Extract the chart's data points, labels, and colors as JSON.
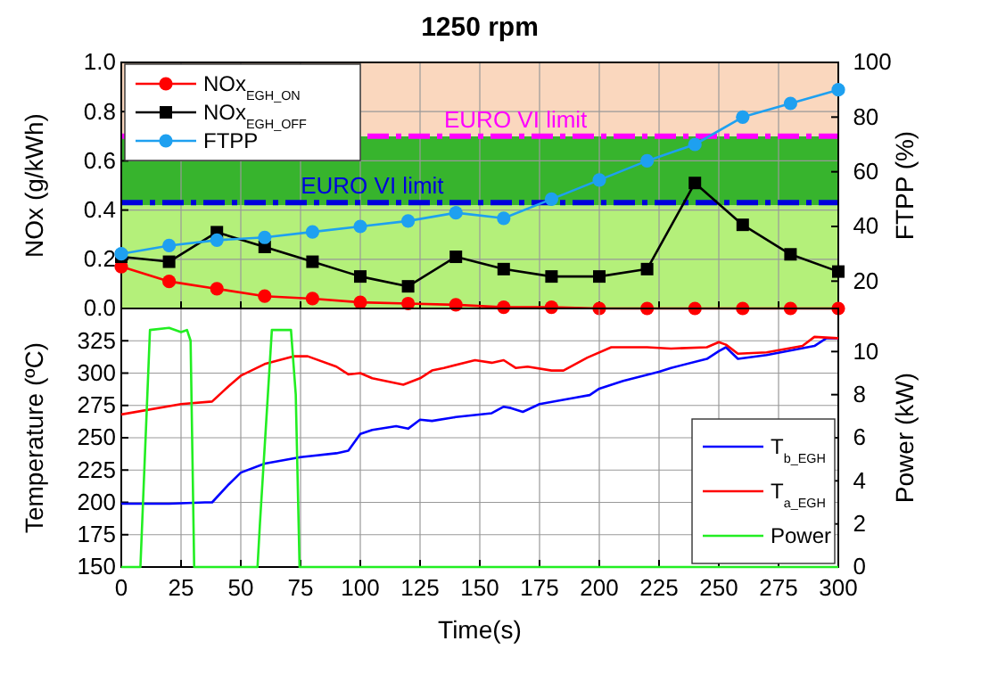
{
  "chart_data": [
    {
      "type": "line",
      "title": "1250 rpm",
      "ylabel": "NOx (g/kWh)",
      "y2label": "FTPP (%)",
      "x": [
        0,
        20,
        40,
        60,
        80,
        100,
        120,
        140,
        160,
        180,
        200,
        220,
        240,
        260,
        280,
        300
      ],
      "series": [
        {
          "name": "NOx$_{EGH_ON}$",
          "color": "#ff0000",
          "marker": "circle",
          "values": [
            0.17,
            0.11,
            0.08,
            0.05,
            0.04,
            0.025,
            0.02,
            0.015,
            0.005,
            0.005,
            0,
            0,
            0,
            0,
            0,
            0
          ]
        },
        {
          "name": "NOx$_{EGH_OFF}$",
          "color": "#000000",
          "marker": "square",
          "values": [
            0.21,
            0.19,
            0.31,
            0.25,
            0.19,
            0.13,
            0.09,
            0.21,
            0.16,
            0.13,
            0.13,
            0.16,
            0.51,
            0.34,
            0.22,
            0.15
          ]
        },
        {
          "name": "FTPP",
          "color": "#1ea0f0",
          "marker": "circle",
          "axis": "y2",
          "values": [
            30,
            33,
            35,
            36,
            38,
            40,
            42,
            45,
            43,
            50,
            57,
            64,
            70,
            80,
            85,
            90
          ]
        }
      ],
      "xlim": [
        0,
        300
      ],
      "xticks": [
        0,
        25,
        50,
        75,
        100,
        125,
        150,
        175,
        200,
        225,
        250,
        275,
        300
      ],
      "ylim": [
        0,
        1
      ],
      "yticks": [
        {
          "value": 0,
          "label": "0.0"
        },
        0.2,
        0.4,
        0.6,
        0.8,
        {
          "value": 1,
          "label": "1.0"
        }
      ],
      "y2lim": [
        10,
        100
      ],
      "y2ticks": [
        20,
        40,
        60,
        80,
        100
      ],
      "bands": [
        {
          "axis": "y",
          "from": 0,
          "to": 0.42,
          "color": "#b4f07a"
        },
        {
          "axis": "y",
          "from": 0.42,
          "to": 0.7,
          "color": "#37b42d"
        },
        {
          "axis": "y",
          "from": 0.7,
          "to": 1,
          "color": "#fad7be"
        }
      ],
      "ref_lines": [
        {
          "axis": "y",
          "value": 0.7,
          "label": "EURO VI limit",
          "color": "#ff00ff",
          "line_style": "dashed"
        },
        {
          "axis": "y",
          "value": 0.43,
          "label": "EURO VI limit",
          "color": "#0000dd",
          "line_style": "dashed"
        }
      ],
      "grid": true,
      "legend": "top left",
      "tick_labels": "y"
    },
    {
      "type": "line",
      "xlabel": "Time(s)",
      "ylabel": "Temperature (ºC)",
      "y2label": "Power (kW)",
      "series": [
        {
          "name": "T$_{b_EGH}$",
          "color": "#0000ff",
          "x": [
            0,
            20,
            35,
            38,
            45,
            50,
            60,
            75,
            90,
            95,
            100,
            105,
            115,
            120,
            125,
            130,
            140,
            155,
            160,
            163,
            168,
            175,
            190,
            196,
            200,
            210,
            225,
            230,
            245,
            250,
            253,
            258,
            270,
            290,
            295,
            300
          ],
          "values": [
            199,
            199,
            200,
            200,
            214,
            223,
            230,
            235,
            238,
            240,
            253,
            256,
            259,
            257,
            264,
            263,
            266,
            269,
            274,
            273,
            270,
            276,
            281,
            283,
            288,
            294,
            301,
            304,
            311,
            317,
            320,
            311,
            314,
            321,
            327,
            327
          ]
        },
        {
          "name": "T$_{a_EGH}$",
          "color": "#ff0000",
          "x": [
            0,
            25,
            38,
            45,
            50,
            60,
            72,
            78,
            90,
            95,
            100,
            105,
            118,
            125,
            130,
            135,
            148,
            155,
            160,
            165,
            170,
            180,
            185,
            195,
            205,
            220,
            230,
            245,
            250,
            253,
            258,
            270,
            285,
            290,
            300
          ],
          "values": [
            268,
            276,
            278,
            290,
            298,
            307,
            313,
            313,
            305,
            299,
            300,
            296,
            291,
            296,
            302,
            304,
            310,
            308,
            310,
            304,
            305,
            302,
            302,
            312,
            320,
            320,
            319,
            320,
            324,
            322,
            315,
            316,
            321,
            328,
            327
          ]
        },
        {
          "name": "Power",
          "color": "#22ee22",
          "axis": "y2",
          "x": [
            0,
            8,
            12,
            20,
            25,
            27.5,
            29,
            30.5,
            57,
            58,
            63,
            71,
            73,
            74.6,
            300
          ],
          "values": [
            0,
            0,
            11,
            11.1,
            10.9,
            11,
            10.5,
            0,
            0,
            2,
            11,
            11,
            8,
            0,
            0
          ]
        }
      ],
      "xlim": [
        0,
        300
      ],
      "xticks": [
        0,
        25,
        50,
        75,
        100,
        125,
        150,
        175,
        200,
        225,
        250,
        275,
        300
      ],
      "ylim": [
        150,
        350
      ],
      "yticks": [
        150,
        175,
        200,
        225,
        250,
        275,
        300,
        325
      ],
      "y2lim": [
        0,
        12
      ],
      "y2ticks": [
        0,
        2,
        4,
        6,
        8,
        10
      ],
      "grid": true,
      "legend": "bottom right"
    }
  ]
}
